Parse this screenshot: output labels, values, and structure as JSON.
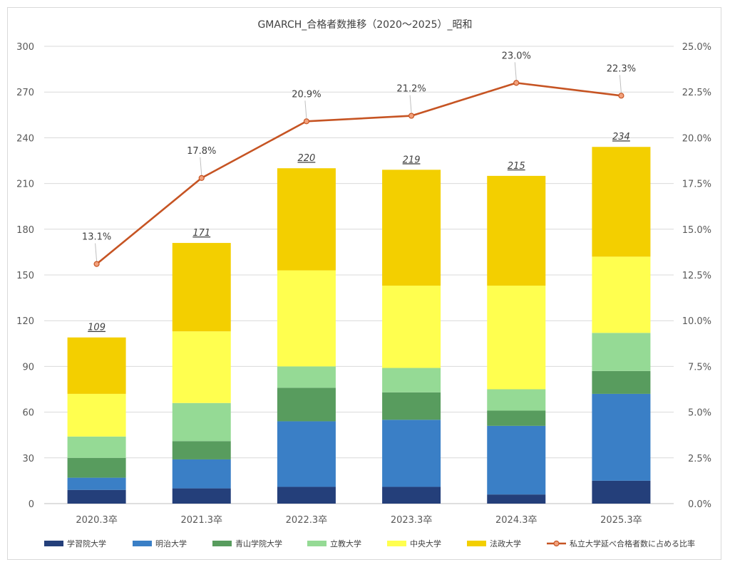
{
  "chart_data": {
    "type": "bar",
    "stacked": true,
    "title": "GMARCH_合格者数推移（2020～2025）_昭和",
    "categories": [
      "2020.3卒",
      "2021.3卒",
      "2022.3卒",
      "2023.3卒",
      "2024.3卒",
      "2025.3卒"
    ],
    "ylim": [
      0,
      300
    ],
    "yticks": [
      "0",
      "30",
      "60",
      "90",
      "120",
      "150",
      "180",
      "210",
      "240",
      "270",
      "300"
    ],
    "y2lim": [
      0,
      25
    ],
    "y2ticks": [
      "0.0%",
      "2.5%",
      "5.0%",
      "7.5%",
      "10.0%",
      "12.5%",
      "15.0%",
      "17.5%",
      "20.0%",
      "22.5%",
      "25.0%"
    ],
    "grid": true,
    "legend_position": "bottom",
    "series": [
      {
        "name": "学習院大学",
        "color": "#243f7a",
        "values": [
          9,
          10,
          11,
          11,
          6,
          15
        ]
      },
      {
        "name": "明治大学",
        "color": "#3a7fc6",
        "values": [
          8,
          19,
          43,
          44,
          45,
          57
        ]
      },
      {
        "name": "青山学院大学",
        "color": "#589c5e",
        "values": [
          13,
          12,
          22,
          18,
          10,
          15
        ]
      },
      {
        "name": "立教大学",
        "color": "#95da95",
        "values": [
          14,
          25,
          14,
          16,
          14,
          25
        ]
      },
      {
        "name": "中央大学",
        "color": "#ffff4f",
        "values": [
          28,
          47,
          63,
          54,
          68,
          50
        ]
      },
      {
        "name": "法政大学",
        "color": "#f3cf00",
        "values": [
          37,
          58,
          67,
          76,
          72,
          72
        ]
      }
    ],
    "totals": [
      "109",
      "171",
      "220",
      "219",
      "215",
      "234"
    ],
    "line_series": {
      "name": "私立大学延べ合格者数に占める比率",
      "color": "#c65423",
      "axis": "right",
      "values": [
        13.1,
        17.8,
        20.9,
        21.2,
        23.0,
        22.3
      ],
      "labels": [
        "13.1%",
        "17.8%",
        "20.9%",
        "21.2%",
        "23.0%",
        "22.3%"
      ]
    }
  }
}
